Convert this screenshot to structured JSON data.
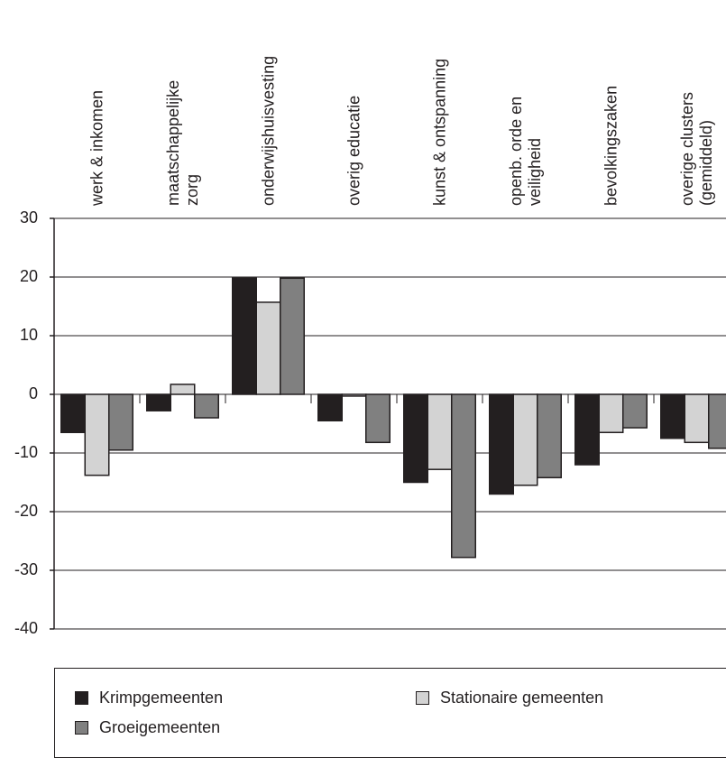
{
  "chart_data": {
    "type": "bar",
    "categories": [
      "werk & inkomen",
      "maatschappelijke\nzorg",
      "onderwijshuisvesting",
      "overig educatie",
      "kunst & ontspanning",
      "openb. orde en\nveiligheid",
      "bevolkingszaken",
      "overige clusters\n(gemiddeld)"
    ],
    "series": [
      {
        "name": "Krimpgemeenten",
        "color": "#231f20",
        "values": [
          -6.5,
          -2.8,
          19.8,
          -4.5,
          -15,
          -17,
          -12,
          -7.5
        ]
      },
      {
        "name": "Stationaire gemeenten",
        "color": "#d3d3d3",
        "values": [
          -13.8,
          1.7,
          15.7,
          -0.3,
          -12.8,
          -15.5,
          -6.5,
          -8.2
        ]
      },
      {
        "name": "Groeigemeenten",
        "color": "#808080",
        "values": [
          -9.5,
          -4,
          19.8,
          -8.2,
          -27.8,
          -14.2,
          -5.7,
          -9.2
        ]
      }
    ],
    "ylim": [
      -40,
      30
    ],
    "yticks": [
      -40,
      -30,
      -20,
      -10,
      0,
      10,
      20,
      30
    ],
    "grid": true,
    "legend": "bottom"
  }
}
